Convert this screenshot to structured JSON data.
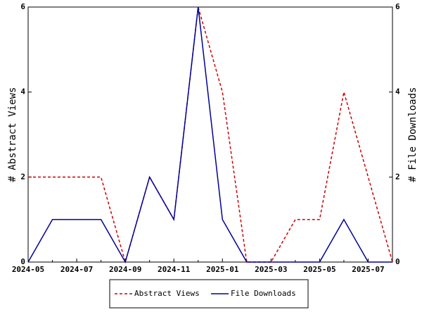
{
  "chart_data": {
    "type": "line",
    "categories": [
      "2024-05",
      null,
      "2024-07",
      null,
      "2024-09",
      null,
      "2024-11",
      null,
      "2025-01",
      null,
      "2025-03",
      null,
      "2025-05",
      null,
      "2025-07",
      null
    ],
    "series": [
      {
        "name": "Abstract Views",
        "color": "#cc0000",
        "dash": true,
        "values": [
          2,
          2,
          2,
          2,
          0,
          2,
          1,
          6,
          4,
          0,
          0,
          1,
          1,
          4,
          2,
          0
        ]
      },
      {
        "name": "File Downloads",
        "color": "#000099",
        "axis": "y2",
        "values": [
          0,
          1,
          1,
          1,
          0,
          2,
          1,
          6,
          1,
          0,
          0,
          0,
          0,
          1,
          0,
          0
        ]
      }
    ],
    "ylabel": "# Abstract Views",
    "y2label": "# File Downloads",
    "ylim": [
      0,
      6
    ],
    "yticks": [
      0,
      2,
      4,
      6
    ],
    "y2lim": [
      0,
      6
    ],
    "y2ticks": [
      0,
      2,
      4,
      6
    ]
  }
}
